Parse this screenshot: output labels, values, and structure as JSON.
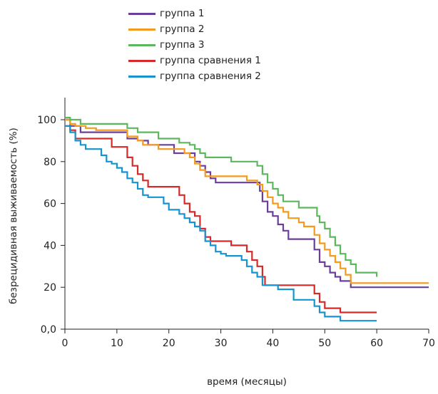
{
  "chart_data": {
    "type": "line",
    "step": true,
    "xlabel": "время (месяцы)",
    "ylabel": "безрецидивная выживаемость (%)",
    "xlim": [
      0,
      70
    ],
    "ylim": [
      0,
      100
    ],
    "x_ticks": [
      0,
      10,
      20,
      30,
      40,
      50,
      60,
      70
    ],
    "y_ticks": [
      0,
      20,
      40,
      60,
      80,
      100
    ],
    "y_tick_labels": [
      "0,0",
      "20",
      "40",
      "60",
      "80",
      "100"
    ],
    "grid": false,
    "legend_position": "top",
    "series": [
      {
        "name": "группа 1",
        "color": "#6a3e9a",
        "points": [
          [
            0,
            100
          ],
          [
            1,
            97
          ],
          [
            2,
            97
          ],
          [
            3,
            94
          ],
          [
            11,
            94
          ],
          [
            12,
            91
          ],
          [
            14,
            90
          ],
          [
            16,
            88
          ],
          [
            20,
            88
          ],
          [
            21,
            84
          ],
          [
            24,
            84
          ],
          [
            25,
            80
          ],
          [
            26,
            78
          ],
          [
            27,
            75
          ],
          [
            28,
            72
          ],
          [
            29,
            70
          ],
          [
            37,
            70
          ],
          [
            37.5,
            66
          ],
          [
            38,
            61
          ],
          [
            39,
            56
          ],
          [
            40,
            54
          ],
          [
            41,
            50
          ],
          [
            42,
            47
          ],
          [
            43,
            43
          ],
          [
            47,
            43
          ],
          [
            48,
            38
          ],
          [
            49,
            32
          ],
          [
            50,
            30
          ],
          [
            51,
            27
          ],
          [
            52,
            25
          ],
          [
            53,
            23
          ],
          [
            55,
            20
          ],
          [
            70,
            20
          ]
        ]
      },
      {
        "name": "группа 2",
        "color": "#f39a1f",
        "points": [
          [
            0,
            100
          ],
          [
            1,
            98
          ],
          [
            2,
            97
          ],
          [
            4,
            96
          ],
          [
            6,
            95
          ],
          [
            11,
            95
          ],
          [
            12,
            92
          ],
          [
            14,
            90
          ],
          [
            15,
            88
          ],
          [
            18,
            86
          ],
          [
            22,
            86
          ],
          [
            23,
            84
          ],
          [
            24,
            82
          ],
          [
            25,
            79
          ],
          [
            26,
            76
          ],
          [
            27,
            73
          ],
          [
            34,
            73
          ],
          [
            35,
            71
          ],
          [
            37,
            69
          ],
          [
            38,
            66
          ],
          [
            39,
            63
          ],
          [
            40,
            60
          ],
          [
            41,
            58
          ],
          [
            42,
            56
          ],
          [
            43,
            53
          ],
          [
            45,
            51
          ],
          [
            46,
            49
          ],
          [
            48,
            45
          ],
          [
            49,
            41
          ],
          [
            50,
            38
          ],
          [
            51,
            35
          ],
          [
            52,
            32
          ],
          [
            53,
            29
          ],
          [
            54,
            26
          ],
          [
            55,
            22
          ],
          [
            70,
            22
          ]
        ]
      },
      {
        "name": "группа 3",
        "color": "#5cb85c",
        "points": [
          [
            0,
            101
          ],
          [
            1,
            100
          ],
          [
            3,
            98
          ],
          [
            11,
            98
          ],
          [
            12,
            96
          ],
          [
            14,
            94
          ],
          [
            17,
            94
          ],
          [
            18,
            91
          ],
          [
            21,
            91
          ],
          [
            22,
            89
          ],
          [
            24,
            88
          ],
          [
            25,
            86
          ],
          [
            26,
            84
          ],
          [
            27,
            82
          ],
          [
            31,
            82
          ],
          [
            32,
            80
          ],
          [
            36,
            80
          ],
          [
            37,
            78
          ],
          [
            38,
            74
          ],
          [
            39,
            70
          ],
          [
            40,
            67
          ],
          [
            41,
            64
          ],
          [
            42,
            61
          ],
          [
            44,
            61
          ],
          [
            45,
            58
          ],
          [
            48,
            58
          ],
          [
            48.5,
            54
          ],
          [
            49,
            51
          ],
          [
            50,
            48
          ],
          [
            51,
            44
          ],
          [
            52,
            40
          ],
          [
            53,
            36
          ],
          [
            54,
            33
          ],
          [
            55,
            31
          ],
          [
            56,
            27
          ],
          [
            59,
            27
          ],
          [
            60,
            25
          ]
        ]
      },
      {
        "name": "группа сравнения 1",
        "color": "#d42a2a",
        "points": [
          [
            0,
            97
          ],
          [
            1,
            95
          ],
          [
            2,
            91
          ],
          [
            5,
            91
          ],
          [
            8,
            91
          ],
          [
            9,
            87
          ],
          [
            11,
            87
          ],
          [
            12,
            82
          ],
          [
            13,
            78
          ],
          [
            14,
            74
          ],
          [
            15,
            71
          ],
          [
            16,
            68
          ],
          [
            21,
            68
          ],
          [
            22,
            64
          ],
          [
            23,
            60
          ],
          [
            24,
            56
          ],
          [
            25,
            54
          ],
          [
            26,
            48
          ],
          [
            27,
            44
          ],
          [
            28,
            42
          ],
          [
            31,
            42
          ],
          [
            32,
            40
          ],
          [
            34,
            40
          ],
          [
            35,
            37
          ],
          [
            36,
            33
          ],
          [
            37,
            30
          ],
          [
            38,
            25
          ],
          [
            38.5,
            21
          ],
          [
            47,
            21
          ],
          [
            48,
            17
          ],
          [
            49,
            13
          ],
          [
            50,
            10
          ],
          [
            52,
            10
          ],
          [
            53,
            8
          ],
          [
            60,
            8
          ]
        ]
      },
      {
        "name": "группа сравнения 2",
        "color": "#1793cf",
        "points": [
          [
            0,
            97
          ],
          [
            1,
            94
          ],
          [
            2,
            90
          ],
          [
            3,
            88
          ],
          [
            4,
            86
          ],
          [
            6,
            86
          ],
          [
            7,
            83
          ],
          [
            8,
            80
          ],
          [
            9,
            79
          ],
          [
            10,
            77
          ],
          [
            11,
            75
          ],
          [
            12,
            72
          ],
          [
            13,
            70
          ],
          [
            14,
            67
          ],
          [
            15,
            64
          ],
          [
            16,
            63
          ],
          [
            18,
            63
          ],
          [
            19,
            60
          ],
          [
            20,
            57
          ],
          [
            22,
            55
          ],
          [
            23,
            53
          ],
          [
            24,
            51
          ],
          [
            25,
            49
          ],
          [
            26,
            47
          ],
          [
            27,
            42
          ],
          [
            28,
            40
          ],
          [
            29,
            37
          ],
          [
            30,
            36
          ],
          [
            31,
            35
          ],
          [
            33,
            35
          ],
          [
            34,
            33
          ],
          [
            35,
            30
          ],
          [
            36,
            27
          ],
          [
            37,
            25
          ],
          [
            38,
            21
          ],
          [
            40,
            21
          ],
          [
            41,
            19
          ],
          [
            43,
            19
          ],
          [
            44,
            14
          ],
          [
            47,
            14
          ],
          [
            48,
            11
          ],
          [
            49,
            8
          ],
          [
            50,
            6
          ],
          [
            52,
            6
          ],
          [
            53,
            4
          ],
          [
            60,
            4
          ]
        ]
      }
    ]
  }
}
